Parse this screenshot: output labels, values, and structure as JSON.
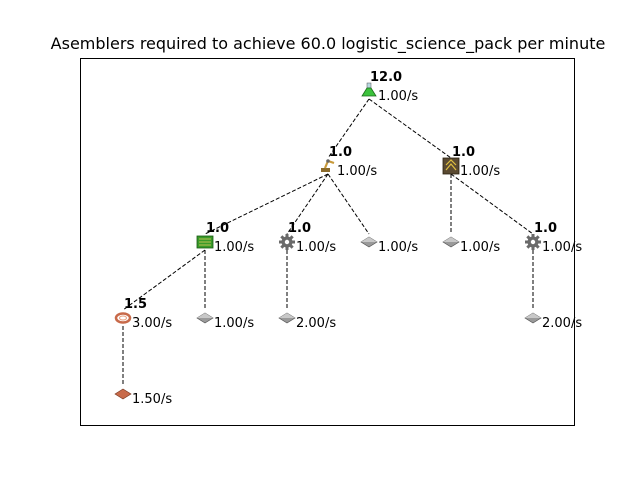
{
  "title": "Asemblers required to achieve 60.0 logistic_science_pack per minute",
  "tree": {
    "nodes": [
      {
        "id": "logistic_science_pack",
        "icon": "logistic-science-pack-icon",
        "count": "12.0",
        "rate": "1.00/s"
      },
      {
        "id": "inserter",
        "icon": "inserter-icon",
        "count": "1.0",
        "rate": "1.00/s"
      },
      {
        "id": "transport_belt",
        "icon": "transport-belt-icon",
        "count": "1.0",
        "rate": "1.00/s"
      },
      {
        "id": "electronic_circuit",
        "icon": "electronic-circuit-icon",
        "count": "1.0",
        "rate": "1.00/s"
      },
      {
        "id": "iron_gear_wheel_a",
        "icon": "iron-gear-wheel-icon",
        "count": "1.0",
        "rate": "1.00/s"
      },
      {
        "id": "iron_plate_a",
        "icon": "iron-plate-icon",
        "count": "",
        "rate": "1.00/s"
      },
      {
        "id": "iron_plate_b",
        "icon": "iron-plate-icon",
        "count": "",
        "rate": "1.00/s"
      },
      {
        "id": "iron_gear_wheel_b",
        "icon": "iron-gear-wheel-icon",
        "count": "1.0",
        "rate": "1.00/s"
      },
      {
        "id": "copper_cable",
        "icon": "copper-cable-icon",
        "count": "1.5",
        "rate": "3.00/s"
      },
      {
        "id": "iron_plate_c",
        "icon": "iron-plate-icon",
        "count": "",
        "rate": "1.00/s"
      },
      {
        "id": "iron_plate_d",
        "icon": "iron-plate-icon",
        "count": "",
        "rate": "2.00/s"
      },
      {
        "id": "iron_plate_e",
        "icon": "iron-plate-icon",
        "count": "",
        "rate": "2.00/s"
      },
      {
        "id": "copper_plate",
        "icon": "copper-plate-icon",
        "count": "",
        "rate": "1.50/s"
      }
    ],
    "edges": [
      [
        "logistic_science_pack",
        "inserter"
      ],
      [
        "logistic_science_pack",
        "transport_belt"
      ],
      [
        "inserter",
        "electronic_circuit"
      ],
      [
        "inserter",
        "iron_gear_wheel_a"
      ],
      [
        "inserter",
        "iron_plate_a"
      ],
      [
        "transport_belt",
        "iron_plate_b"
      ],
      [
        "transport_belt",
        "iron_gear_wheel_b"
      ],
      [
        "electronic_circuit",
        "copper_cable"
      ],
      [
        "electronic_circuit",
        "iron_plate_c"
      ],
      [
        "iron_gear_wheel_a",
        "iron_plate_d"
      ],
      [
        "iron_gear_wheel_b",
        "iron_plate_e"
      ],
      [
        "copper_cable",
        "copper_plate"
      ]
    ]
  },
  "colors": {
    "edge": "#000000",
    "science_pack": "#3cc23c",
    "iron_plate": "#9a9a9a",
    "copper": "#c86a4a",
    "circuit": "#3a9a2a",
    "belt": "#5a4a32",
    "gear": "#6a6a6a"
  }
}
